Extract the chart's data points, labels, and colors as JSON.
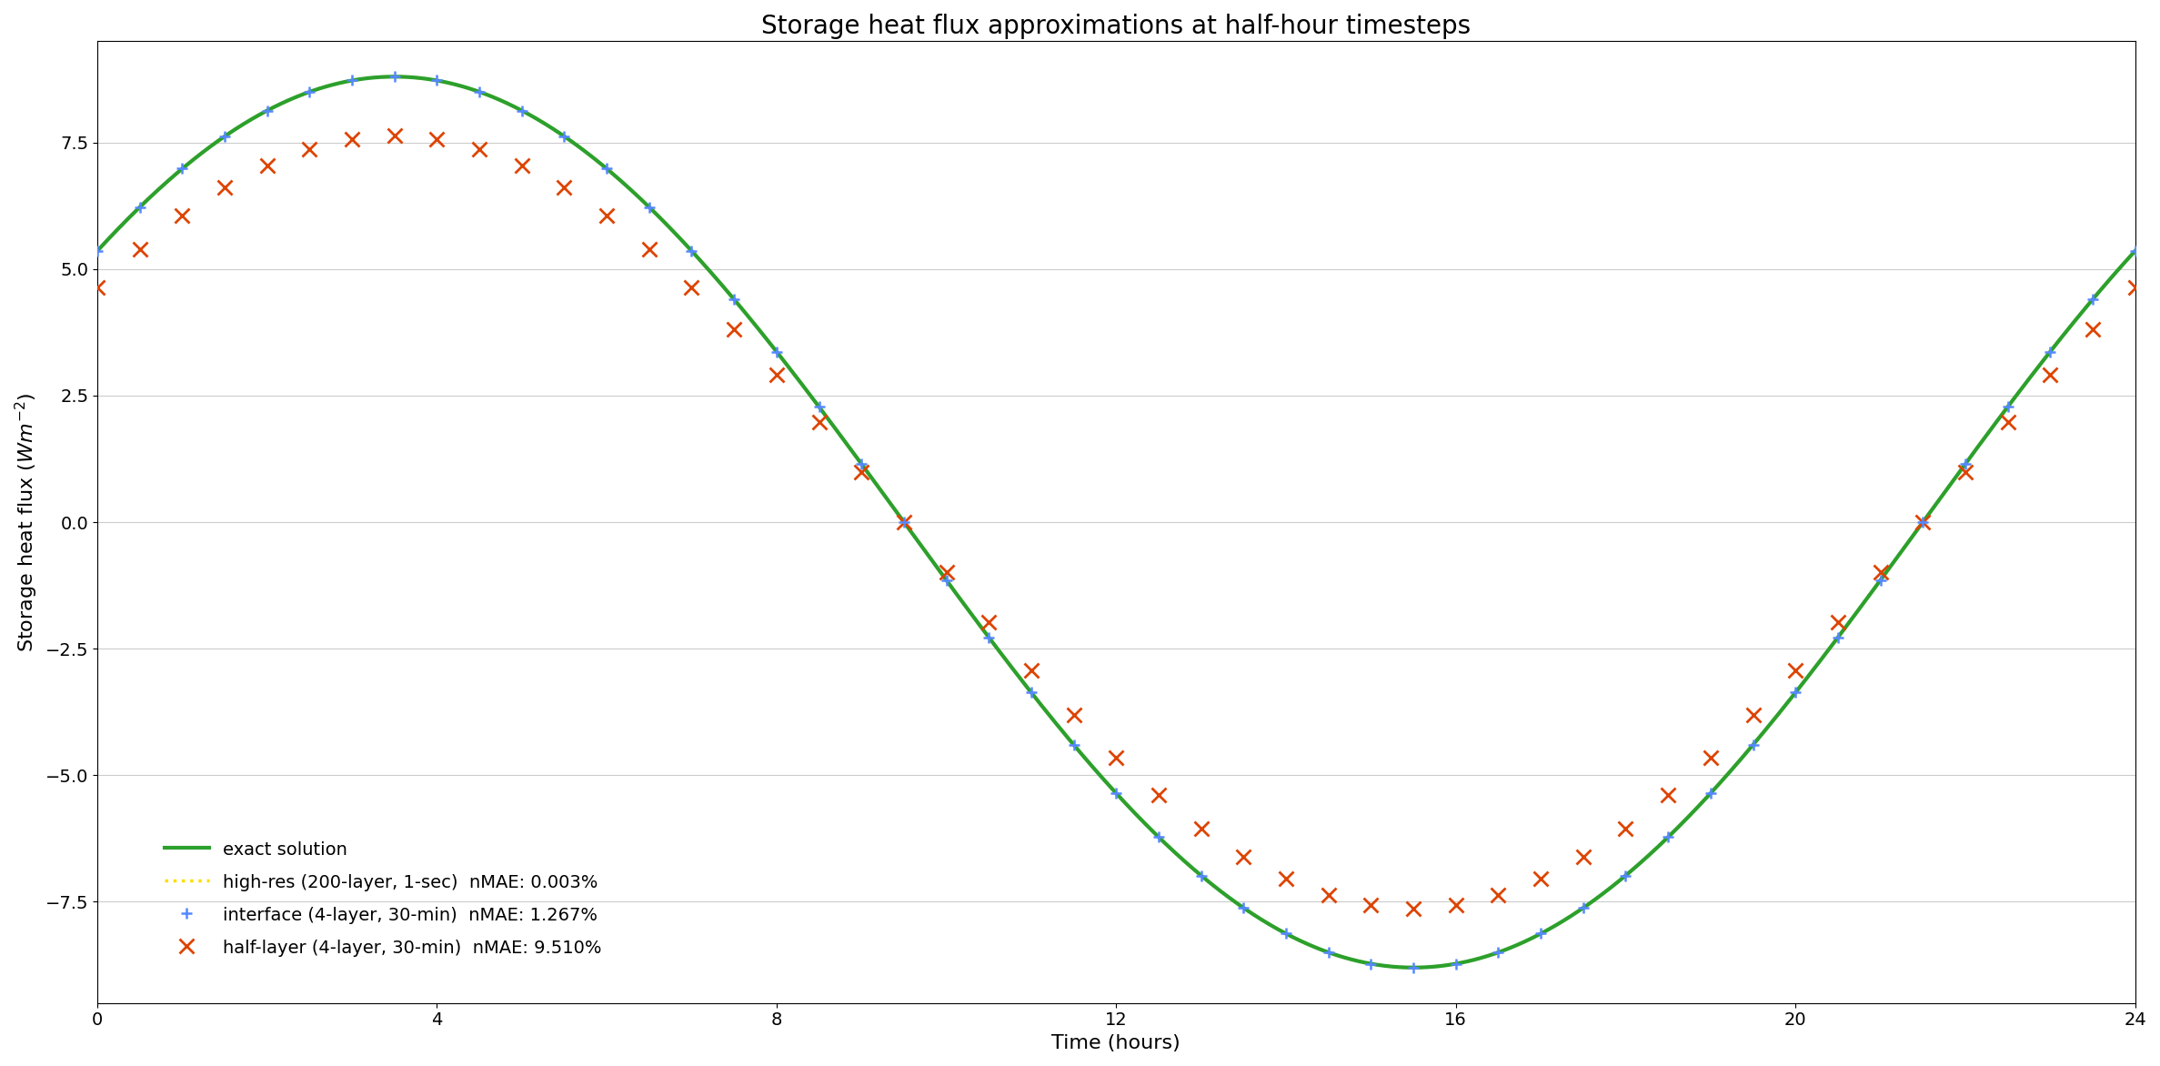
{
  "title": "Storage heat flux approximations at half-hour timesteps",
  "xlabel": "Time (hours)",
  "ylabel": "Storage heat flux ($Wm^{-2}$)",
  "xlim": [
    0,
    24
  ],
  "ylim": [
    -9.5,
    9.5
  ],
  "xticks": [
    0,
    4,
    8,
    12,
    16,
    20,
    24
  ],
  "yticks": [
    -7.5,
    -5.0,
    -2.5,
    0.0,
    2.5,
    5.0,
    7.5
  ],
  "exact_color": "#2ca02c",
  "hires_color": "#ffdd00",
  "interface_color": "#5588ff",
  "halflayer_color": "#dd4400",
  "exact_label": "exact solution",
  "hires_label": "high-res (200-layer, 1-sec)  nMAE: 0.003%",
  "interface_label": "interface (4-layer, 30-min)  nMAE: 1.267%",
  "halflayer_label": "half-layer (4-layer, 30-min)  nMAE: 9.510%",
  "amplitude": 8.8,
  "amplitude_hl_ratio": 0.867,
  "period": 24.0,
  "t_peak": 3.5,
  "background_color": "#ffffff",
  "grid_color": "#cccccc",
  "title_fontsize": 20,
  "label_fontsize": 16,
  "tick_fontsize": 14,
  "legend_fontsize": 14,
  "linewidth_exact": 3.0,
  "linewidth_hires": 2.5,
  "markersize_interface": 9,
  "markersize_halflayer": 11,
  "marker_lw_interface": 1.8,
  "marker_lw_halflayer": 2.0
}
